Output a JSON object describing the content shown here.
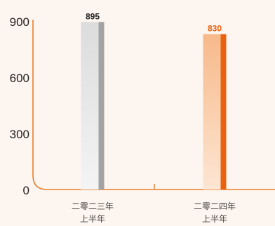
{
  "chart_data": {
    "type": "bar",
    "categories": [
      [
        "二零二三年",
        "上半年"
      ],
      [
        "二零二四年",
        "上半年"
      ]
    ],
    "values": [
      895,
      830
    ],
    "value_labels": [
      "895",
      "830"
    ],
    "y_ticks": [
      "0",
      "300",
      "600",
      "900"
    ],
    "ylim": [
      0,
      900
    ],
    "title": "",
    "xlabel": "",
    "ylabel": "",
    "grid": false,
    "legend": "none",
    "colors": {
      "axis": "#e8802e",
      "bar_1_light": "#f4f4f4",
      "bar_1_mid": "#dcdcdc",
      "bar_1_edge": "#a3a3a3",
      "bar_2_light": "#fde6d3",
      "bar_2_mid": "#f7b98a",
      "bar_2_edge": "#e8620f",
      "value_label_1": "#222222",
      "value_label_2": "#e8620f"
    }
  }
}
